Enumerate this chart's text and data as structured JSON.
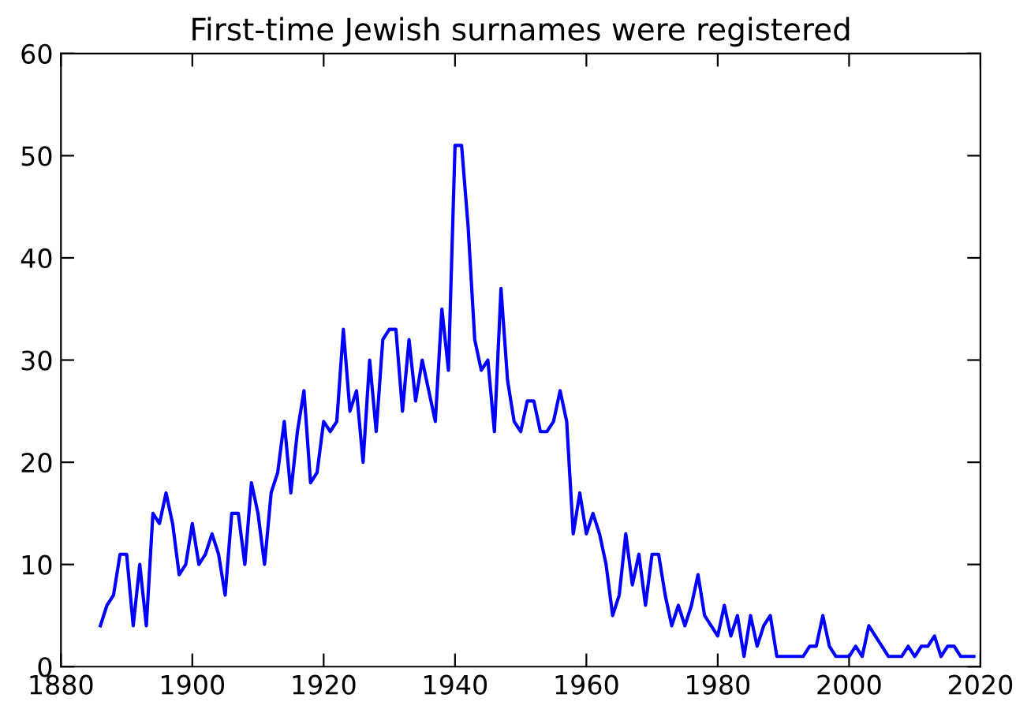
{
  "chart_data": {
    "type": "line",
    "title": "First-time Jewish surnames were registered",
    "x": [
      1886,
      1887,
      1888,
      1889,
      1890,
      1891,
      1892,
      1893,
      1894,
      1895,
      1896,
      1897,
      1898,
      1899,
      1900,
      1901,
      1902,
      1903,
      1904,
      1905,
      1906,
      1907,
      1908,
      1909,
      1910,
      1911,
      1912,
      1913,
      1914,
      1915,
      1916,
      1917,
      1918,
      1919,
      1920,
      1921,
      1922,
      1923,
      1924,
      1925,
      1926,
      1927,
      1928,
      1929,
      1930,
      1931,
      1932,
      1933,
      1934,
      1935,
      1936,
      1937,
      1938,
      1939,
      1940,
      1941,
      1942,
      1943,
      1944,
      1945,
      1946,
      1947,
      1948,
      1949,
      1950,
      1951,
      1952,
      1953,
      1954,
      1955,
      1956,
      1957,
      1958,
      1959,
      1960,
      1961,
      1962,
      1963,
      1964,
      1965,
      1966,
      1967,
      1968,
      1969,
      1970,
      1971,
      1972,
      1973,
      1974,
      1975,
      1976,
      1977,
      1978,
      1979,
      1980,
      1981,
      1982,
      1983,
      1984,
      1985,
      1986,
      1987,
      1988,
      1989,
      1990,
      1991,
      1992,
      1993,
      1994,
      1995,
      1996,
      1997,
      1998,
      1999,
      2000,
      2001,
      2002,
      2003,
      2004,
      2005,
      2006,
      2007,
      2008,
      2009,
      2010,
      2011,
      2012,
      2013,
      2014,
      2015,
      2016,
      2017,
      2018,
      2019
    ],
    "series": [
      {
        "color": "#0000ff",
        "values": [
          4,
          6,
          7,
          11,
          11,
          4,
          10,
          4,
          15,
          14,
          17,
          14,
          9,
          10,
          14,
          10,
          11,
          13,
          11,
          7,
          15,
          15,
          10,
          18,
          15,
          10,
          17,
          19,
          24,
          17,
          23,
          27,
          18,
          19,
          24,
          23,
          24,
          33,
          25,
          27,
          20,
          30,
          23,
          32,
          33,
          33,
          25,
          32,
          26,
          30,
          27,
          24,
          35,
          29,
          51,
          51,
          43,
          32,
          29,
          30,
          23,
          37,
          28,
          24,
          23,
          26,
          26,
          23,
          23,
          24,
          27,
          24,
          13,
          17,
          13,
          15,
          13,
          10,
          5,
          7,
          13,
          8,
          11,
          6,
          11,
          11,
          7,
          4,
          6,
          4,
          6,
          9,
          5,
          4,
          3,
          6,
          3,
          5,
          1,
          5,
          2,
          4,
          5,
          1,
          1,
          1,
          1,
          1,
          2,
          2,
          5,
          2,
          1,
          1,
          1,
          2,
          1,
          4,
          3,
          2,
          1,
          1,
          1,
          2,
          1,
          2,
          2,
          3,
          1,
          2,
          2,
          1,
          1,
          1
        ]
      }
    ],
    "xlim": [
      1880,
      2020
    ],
    "ylim": [
      0,
      60
    ],
    "xticks": [
      1880,
      1900,
      1920,
      1940,
      1960,
      1980,
      2000,
      2020
    ],
    "yticks": [
      0,
      10,
      20,
      30,
      40,
      50,
      60
    ],
    "grid": false,
    "legend": false,
    "marker": "none",
    "line_style": "solid"
  }
}
